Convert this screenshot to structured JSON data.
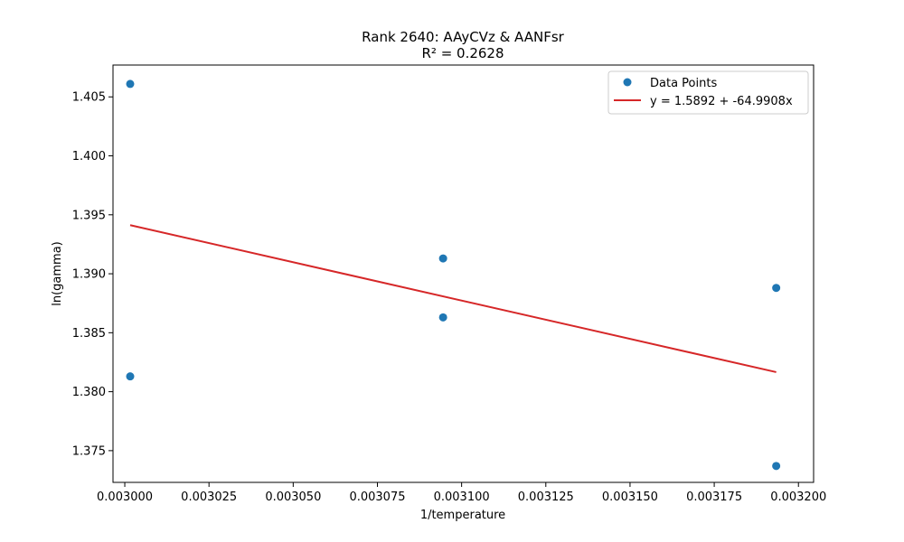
{
  "chart_data": {
    "type": "scatter",
    "title": "Rank 2640: AAyCVz & AANFsr",
    "subtitle": "R² = 0.2628",
    "xlabel": "1/temperature",
    "ylabel": "ln(gamma)",
    "xlim": [
      0.0029965,
      0.0032045
    ],
    "ylim": [
      1.37231,
      1.4077
    ],
    "xticks": [
      0.003,
      0.003025,
      0.00305,
      0.003075,
      0.0031,
      0.003125,
      0.00315,
      0.003175,
      0.0032
    ],
    "xtick_labels": [
      "0.003000",
      "0.003025",
      "0.003050",
      "0.003075",
      "0.003100",
      "0.003125",
      "0.003150",
      "0.003175",
      "0.003200"
    ],
    "yticks": [
      1.375,
      1.38,
      1.385,
      1.39,
      1.395,
      1.4,
      1.405
    ],
    "ytick_labels": [
      "1.375",
      "1.380",
      "1.385",
      "1.390",
      "1.395",
      "1.400",
      "1.405"
    ],
    "grid": false,
    "legend_position": "top-right",
    "series": [
      {
        "name": "Data Points",
        "kind": "scatter",
        "color": "#1f77b4",
        "x": [
          0.0030016,
          0.0030016,
          0.0030945,
          0.0030945,
          0.0031934,
          0.0031934
        ],
        "y": [
          1.4061,
          1.3813,
          1.3913,
          1.3863,
          1.3888,
          1.3737
        ]
      },
      {
        "name": "y = 1.5892 + -64.9908x",
        "kind": "line",
        "color": "#d62728",
        "intercept": 1.5892,
        "slope": -64.9908,
        "x_range": [
          0.0030016,
          0.0031934
        ]
      }
    ]
  }
}
